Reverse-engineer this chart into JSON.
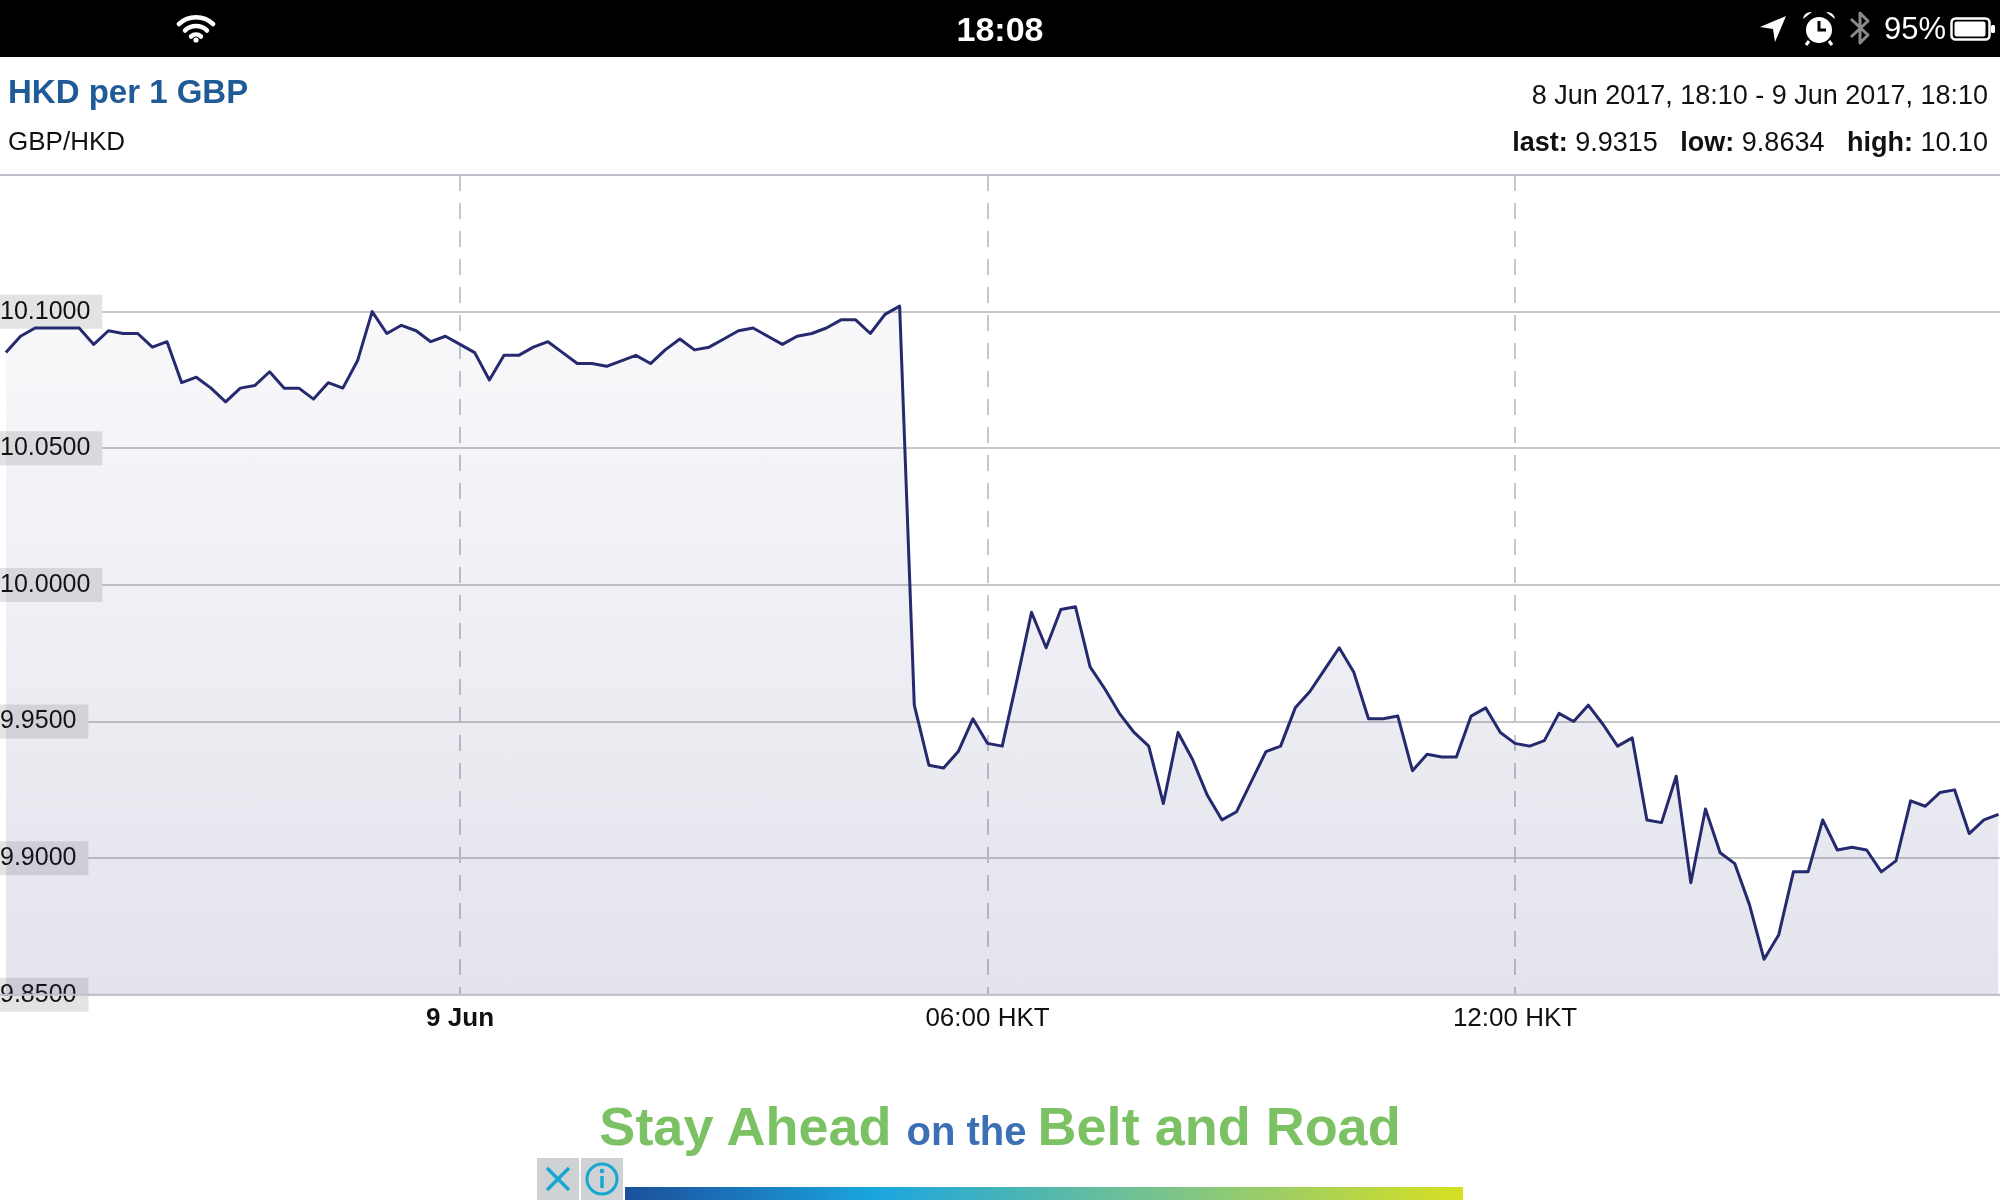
{
  "chart_data": {
    "type": "area",
    "title": "HKD per 1 GBP",
    "subtitle": "GBP/HKD",
    "annotations": [
      "18:08",
      "95%",
      "8 Jun 2017, 18:10 - 9 Jun 2017, 18:10",
      "last: 9.9315   low: 9.8634   high: 10.10",
      "Stay Ahead on the Belt and Road"
    ],
    "color": "#252a6e",
    "x": [
      "2017-06-08T18:50",
      "2017-06-08T19:00",
      "2017-06-08T19:10",
      "2017-06-08T19:20",
      "2017-06-08T19:30",
      "2017-06-08T19:40",
      "2017-06-08T19:50",
      "2017-06-08T20:00",
      "2017-06-08T20:10",
      "2017-06-08T20:20",
      "2017-06-08T20:30",
      "2017-06-08T20:40",
      "2017-06-08T20:50",
      "2017-06-08T21:00",
      "2017-06-08T21:10",
      "2017-06-08T21:20",
      "2017-06-08T21:30",
      "2017-06-08T21:40",
      "2017-06-08T21:50",
      "2017-06-08T22:00",
      "2017-06-08T22:10",
      "2017-06-08T22:20",
      "2017-06-08T22:30",
      "2017-06-08T22:40",
      "2017-06-08T22:50",
      "2017-06-08T23:00",
      "2017-06-08T23:10",
      "2017-06-08T23:20",
      "2017-06-08T23:30",
      "2017-06-08T23:40",
      "2017-06-08T23:50",
      "2017-06-09T00:00",
      "2017-06-09T00:10",
      "2017-06-09T00:20",
      "2017-06-09T00:30",
      "2017-06-09T00:40",
      "2017-06-09T00:50",
      "2017-06-09T01:00",
      "2017-06-09T01:10",
      "2017-06-09T01:20",
      "2017-06-09T01:30",
      "2017-06-09T01:40",
      "2017-06-09T01:50",
      "2017-06-09T02:00",
      "2017-06-09T02:10",
      "2017-06-09T02:20",
      "2017-06-09T02:30",
      "2017-06-09T02:40",
      "2017-06-09T02:50",
      "2017-06-09T03:00",
      "2017-06-09T03:10",
      "2017-06-09T03:20",
      "2017-06-09T03:30",
      "2017-06-09T03:40",
      "2017-06-09T03:50",
      "2017-06-09T04:00",
      "2017-06-09T04:10",
      "2017-06-09T04:20",
      "2017-06-09T04:30",
      "2017-06-09T04:40",
      "2017-06-09T04:50",
      "2017-06-09T05:00",
      "2017-06-09T05:10",
      "2017-06-09T05:20",
      "2017-06-09T05:30",
      "2017-06-09T05:40",
      "2017-06-09T05:50",
      "2017-06-09T06:00",
      "2017-06-09T06:10",
      "2017-06-09T06:20",
      "2017-06-09T06:30",
      "2017-06-09T06:40",
      "2017-06-09T06:50",
      "2017-06-09T07:00",
      "2017-06-09T07:10",
      "2017-06-09T07:20",
      "2017-06-09T07:30",
      "2017-06-09T07:40",
      "2017-06-09T07:50",
      "2017-06-09T08:00",
      "2017-06-09T08:10",
      "2017-06-09T08:20",
      "2017-06-09T08:30",
      "2017-06-09T08:40",
      "2017-06-09T08:50",
      "2017-06-09T09:00",
      "2017-06-09T09:10",
      "2017-06-09T09:20",
      "2017-06-09T09:30",
      "2017-06-09T09:40",
      "2017-06-09T09:50",
      "2017-06-09T10:00",
      "2017-06-09T10:10",
      "2017-06-09T10:20",
      "2017-06-09T10:30",
      "2017-06-09T10:40",
      "2017-06-09T10:50",
      "2017-06-09T11:00",
      "2017-06-09T11:10",
      "2017-06-09T11:20",
      "2017-06-09T11:30",
      "2017-06-09T11:40",
      "2017-06-09T11:50",
      "2017-06-09T12:00",
      "2017-06-09T12:10",
      "2017-06-09T12:20",
      "2017-06-09T12:30",
      "2017-06-09T12:40",
      "2017-06-09T12:50",
      "2017-06-09T13:00",
      "2017-06-09T13:10",
      "2017-06-09T13:20",
      "2017-06-09T13:30",
      "2017-06-09T13:40",
      "2017-06-09T13:50",
      "2017-06-09T14:00",
      "2017-06-09T14:10",
      "2017-06-09T14:20",
      "2017-06-09T14:30",
      "2017-06-09T14:40",
      "2017-06-09T14:50",
      "2017-06-09T15:00",
      "2017-06-09T15:10",
      "2017-06-09T15:20",
      "2017-06-09T15:30",
      "2017-06-09T15:40",
      "2017-06-09T15:50",
      "2017-06-09T16:00",
      "2017-06-09T16:10",
      "2017-06-09T16:20",
      "2017-06-09T16:30",
      "2017-06-09T16:40",
      "2017-06-09T16:50",
      "2017-06-09T17:00",
      "2017-06-09T17:10",
      "2017-06-09T17:20",
      "2017-06-09T17:30"
    ],
    "values": [
      10.085,
      10.091,
      10.094,
      10.094,
      10.094,
      10.094,
      10.088,
      10.093,
      10.092,
      10.092,
      10.087,
      10.089,
      10.074,
      10.076,
      10.072,
      10.067,
      10.072,
      10.073,
      10.078,
      10.072,
      10.072,
      10.068,
      10.074,
      10.072,
      10.082,
      10.1,
      10.092,
      10.095,
      10.093,
      10.089,
      10.091,
      10.088,
      10.085,
      10.075,
      10.084,
      10.084,
      10.087,
      10.089,
      10.085,
      10.081,
      10.081,
      10.08,
      10.082,
      10.084,
      10.081,
      10.086,
      10.09,
      10.086,
      10.087,
      10.09,
      10.093,
      10.094,
      10.091,
      10.088,
      10.091,
      10.092,
      10.094,
      10.097,
      10.097,
      10.092,
      10.099,
      10.102,
      9.956,
      9.934,
      9.933,
      9.939,
      9.951,
      9.942,
      9.941,
      9.965,
      9.99,
      9.977,
      9.991,
      9.992,
      9.97,
      9.962,
      9.953,
      9.946,
      9.941,
      9.92,
      9.946,
      9.936,
      9.923,
      9.914,
      9.917,
      9.928,
      9.939,
      9.941,
      9.955,
      9.961,
      9.969,
      9.977,
      9.968,
      9.951,
      9.951,
      9.952,
      9.932,
      9.938,
      9.937,
      9.937,
      9.952,
      9.955,
      9.946,
      9.942,
      9.941,
      9.943,
      9.953,
      9.95,
      9.956,
      9.949,
      9.941,
      9.944,
      9.914,
      9.913,
      9.93,
      9.891,
      9.918,
      9.902,
      9.898,
      9.883,
      9.863,
      9.872,
      9.895,
      9.895,
      9.914,
      9.903,
      9.904,
      9.903,
      9.895,
      9.899,
      9.921,
      9.919,
      9.924,
      9.925,
      9.909,
      9.914,
      9.916
    ],
    "xlim": [
      "2017-06-08T18:46",
      "2017-06-09T17:31"
    ],
    "xticks": [
      {
        "value": "2017-06-09T00:00",
        "label": "9 Jun"
      },
      {
        "value": "2017-06-09T06:00",
        "label": "06:00 HKT"
      },
      {
        "value": "2017-06-09T12:00",
        "label": "12:00 HKT"
      }
    ],
    "ylim": [
      9.85,
      10.15
    ],
    "yticks": [
      {
        "value": 9.85,
        "label": "9.8500"
      },
      {
        "value": 9.9,
        "label": "9.9000"
      },
      {
        "value": 9.95,
        "label": "9.9500"
      },
      {
        "value": 10.0,
        "label": "10.0000"
      },
      {
        "value": 10.05,
        "label": "10.0500"
      },
      {
        "value": 10.1,
        "label": "10.1000"
      }
    ],
    "grid": true
  }
}
